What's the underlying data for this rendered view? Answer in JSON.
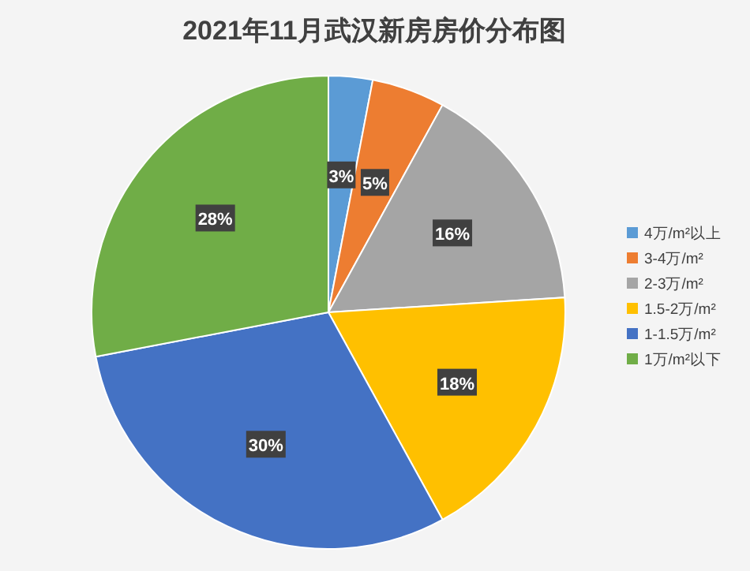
{
  "chart_data": {
    "type": "pie",
    "title": "2021年11月武汉新房房价分布图",
    "categories": [
      "4万/m²以上",
      "3-4万/m²",
      "2-3万/m²",
      "1.5-2万/m²",
      "1-1.5万/m²",
      "1万/m²以下"
    ],
    "values": [
      3,
      5,
      16,
      18,
      30,
      28
    ],
    "colors": [
      "#5b9bd5",
      "#ed7d31",
      "#a5a5a5",
      "#ffc000",
      "#4472c4",
      "#70ad47"
    ],
    "value_labels": [
      "3%",
      "5%",
      "16%",
      "18%",
      "30%",
      "28%"
    ],
    "legend": "right"
  }
}
